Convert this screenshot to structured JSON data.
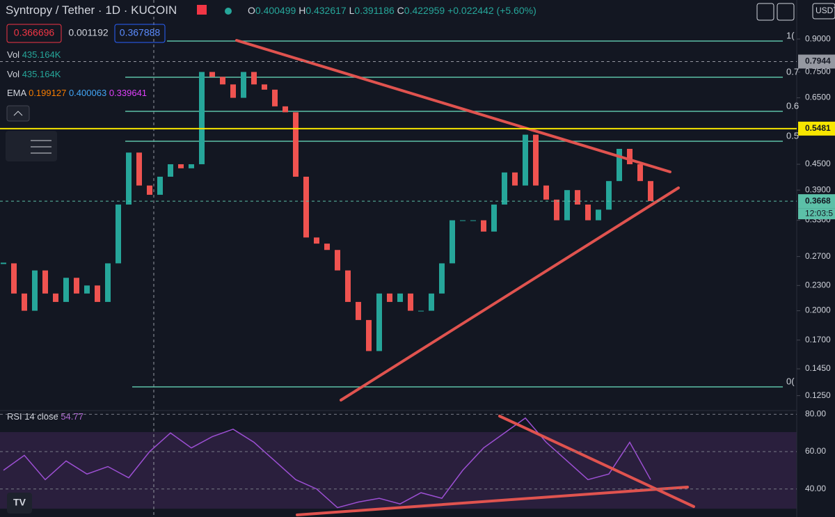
{
  "header": {
    "symbol": "Syntropy / Tether",
    "interval": "1D",
    "exchange": "KUCOIN",
    "o_label": "O",
    "open": "0.400499",
    "h_label": "H",
    "high": "0.432617",
    "l_label": "L",
    "low": "0.391186",
    "c_label": "C",
    "close": "0.422959",
    "change": "+0.022442 (+5.60%)"
  },
  "quote": {
    "sell": "0.366696",
    "spread": "0.001192",
    "buy": "0.367888"
  },
  "indicators": {
    "vol1_label": "Vol",
    "vol1": "435.164K",
    "vol2_label": "Vol",
    "vol2": "435.164K",
    "ema_label": "EMA",
    "ema1": "0.199127",
    "ema2": "0.400063",
    "ema3": "0.339641"
  },
  "chart": {
    "currency": "USDT",
    "log_scale": true,
    "ylim": [
      0.116,
      1.117
    ],
    "yticks": [
      {
        "value": 0.9,
        "label": "0.9000"
      },
      {
        "value": 0.75,
        "label": "0.7500"
      },
      {
        "value": 0.65,
        "label": "0.6500"
      },
      {
        "value": 0.45,
        "label": "0.4500"
      },
      {
        "value": 0.39,
        "label": "0.3900"
      },
      {
        "value": 0.33,
        "label": "0.3300"
      },
      {
        "value": 0.27,
        "label": "0.2700"
      },
      {
        "value": 0.23,
        "label": "0.2300"
      },
      {
        "value": 0.2,
        "label": "0.2000"
      },
      {
        "value": 0.17,
        "label": "0.1700"
      },
      {
        "value": 0.145,
        "label": "0.1450"
      },
      {
        "value": 0.125,
        "label": "0.1250"
      }
    ],
    "crosshair_price": {
      "value": 0.7944,
      "label": "0.7944"
    },
    "alert_line": {
      "value": 0.5481,
      "label": "0.5481"
    },
    "last_price": {
      "value": 0.3668,
      "label": "0.3668"
    },
    "countdown": "12:03:5",
    "fib_labels": [
      "1(",
      "0.7",
      "0.6",
      "0.5",
      "0("
    ],
    "closes": [
      0.26,
      0.22,
      0.2,
      0.25,
      0.22,
      0.21,
      0.24,
      0.22,
      0.23,
      0.21,
      0.26,
      0.36,
      0.48,
      0.4,
      0.38,
      0.42,
      0.45,
      0.44,
      0.45,
      0.75,
      0.73,
      0.7,
      0.65,
      0.75,
      0.7,
      0.68,
      0.62,
      0.6,
      0.42,
      0.3,
      0.29,
      0.28,
      0.25,
      0.21,
      0.19,
      0.16,
      0.22,
      0.21,
      0.22,
      0.2,
      0.2,
      0.22,
      0.26,
      0.33,
      0.33,
      0.33,
      0.31,
      0.36,
      0.43,
      0.4,
      0.53,
      0.4,
      0.37,
      0.33,
      0.39,
      0.36,
      0.33,
      0.35,
      0.41,
      0.49,
      0.45,
      0.41,
      0.367
    ]
  },
  "rsi": {
    "label": "RSI 14 close",
    "value": "54.77",
    "ylim": [
      25,
      82
    ],
    "yticks": [
      {
        "value": 80,
        "label": "80.00"
      },
      {
        "value": 60,
        "label": "60.00"
      },
      {
        "value": 40,
        "label": "40.00"
      }
    ],
    "values": [
      50,
      58,
      45,
      55,
      48,
      52,
      46,
      60,
      70,
      62,
      68,
      72,
      65,
      55,
      45,
      40,
      30,
      33,
      35,
      32,
      38,
      35,
      50,
      62,
      70,
      78,
      65,
      55,
      45,
      48,
      65,
      45
    ]
  }
}
